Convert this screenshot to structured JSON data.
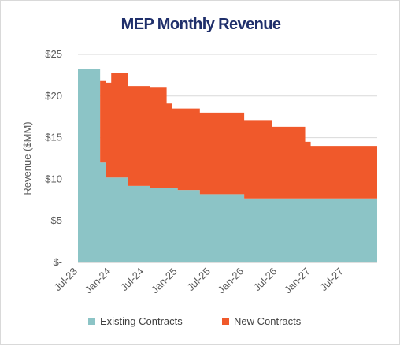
{
  "chart_data": {
    "type": "area",
    "stacked": true,
    "title": "MEP Monthly Revenue",
    "xlabel": "",
    "ylabel": "Revenue ($MM)",
    "ylim": [
      0,
      25
    ],
    "y_ticks": [
      0,
      5,
      10,
      15,
      20,
      25
    ],
    "y_tick_labels": [
      "$-",
      "$5",
      "$10",
      "$15",
      "$20",
      "$25"
    ],
    "x": [
      "Jul-23",
      "Aug-23",
      "Sep-23",
      "Oct-23",
      "Nov-23",
      "Dec-23",
      "Jan-24",
      "Feb-24",
      "Mar-24",
      "Apr-24",
      "May-24",
      "Jun-24",
      "Jul-24",
      "Aug-24",
      "Sep-24",
      "Oct-24",
      "Nov-24",
      "Dec-24",
      "Jan-25",
      "Feb-25",
      "Mar-25",
      "Apr-25",
      "May-25",
      "Jun-25",
      "Jul-25",
      "Aug-25",
      "Sep-25",
      "Oct-25",
      "Nov-25",
      "Dec-25",
      "Jan-26",
      "Feb-26",
      "Mar-26",
      "Apr-26",
      "May-26",
      "Jun-26",
      "Jul-26",
      "Aug-26",
      "Sep-26",
      "Oct-26",
      "Nov-26",
      "Dec-26",
      "Jan-27",
      "Feb-27",
      "Mar-27",
      "Apr-27",
      "May-27",
      "Jun-27",
      "Jul-27",
      "Aug-27",
      "Sep-27",
      "Oct-27",
      "Nov-27",
      "Dec-27"
    ],
    "x_tick_labels": [
      "Jul-23",
      "Jan-24",
      "Jul-24",
      "Jan-25",
      "Jul-25",
      "Jan-26",
      "Jul-26",
      "Jan-27",
      "Jul-27"
    ],
    "series": [
      {
        "name": "Existing Contracts",
        "color": "#8cc4c6",
        "values": [
          23.3,
          23.3,
          23.3,
          23.3,
          12.0,
          10.2,
          10.2,
          10.2,
          10.2,
          9.2,
          9.2,
          9.2,
          9.2,
          8.9,
          8.9,
          8.9,
          8.9,
          8.9,
          8.7,
          8.7,
          8.7,
          8.7,
          8.2,
          8.2,
          8.2,
          8.2,
          8.2,
          8.2,
          8.2,
          8.2,
          7.7,
          7.7,
          7.7,
          7.7,
          7.7,
          7.7,
          7.7,
          7.7,
          7.7,
          7.7,
          7.7,
          7.7,
          7.7,
          7.7,
          7.7,
          7.7,
          7.7,
          7.7,
          7.7,
          7.7,
          7.7,
          7.7,
          7.7,
          7.7
        ]
      },
      {
        "name": "New Contracts",
        "color": "#f0592b",
        "values": [
          0,
          0,
          0,
          0,
          9.8,
          11.4,
          12.6,
          12.6,
          12.6,
          12.0,
          12.0,
          12.0,
          12.0,
          12.1,
          12.1,
          12.1,
          10.2,
          9.6,
          9.8,
          9.8,
          9.8,
          9.8,
          9.8,
          9.8,
          9.8,
          9.8,
          9.8,
          9.8,
          9.8,
          9.8,
          9.4,
          9.4,
          9.4,
          9.4,
          9.4,
          8.6,
          8.6,
          8.6,
          8.6,
          8.6,
          8.6,
          6.8,
          6.3,
          6.3,
          6.3,
          6.3,
          6.3,
          6.3,
          6.3,
          6.3,
          6.3,
          6.3,
          6.3,
          6.3
        ]
      }
    ],
    "grid": true,
    "legend": "bottom"
  }
}
